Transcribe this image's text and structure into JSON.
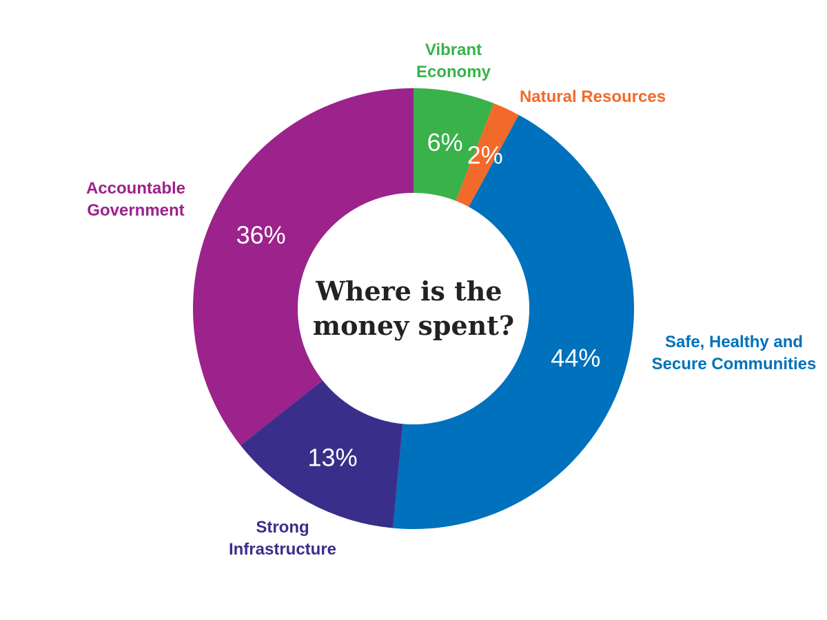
{
  "chart_data": {
    "type": "pie",
    "title": "Where is the money spent?",
    "title_lines": [
      "Where is the",
      "money spent?"
    ],
    "unit": "%",
    "slices": [
      {
        "label": "Vibrant Economy",
        "label_lines": [
          "Vibrant",
          "Economy"
        ],
        "value": 6,
        "value_label": "6%",
        "color": "#39B24A"
      },
      {
        "label": "Natural Resources",
        "label_lines": [
          "Natural Resources"
        ],
        "value": 2,
        "value_label": "2%",
        "color": "#F26A2A"
      },
      {
        "label": "Safe, Healthy and Secure Communities",
        "label_lines": [
          "Safe, Healthy and",
          "Secure Communities"
        ],
        "value": 44,
        "value_label": "44%",
        "color": "#0071BC"
      },
      {
        "label": "Strong Infrastructure",
        "label_lines": [
          "Strong",
          "Infrastructure"
        ],
        "value": 13,
        "value_label": "13%",
        "color": "#3A2E8B"
      },
      {
        "label": "Accountable Government",
        "label_lines": [
          "Accountable",
          "Government"
        ],
        "value": 36,
        "value_label": "36%",
        "color": "#9B238B"
      }
    ],
    "start_angle": "12 o'clock",
    "direction": "clockwise",
    "donut": true
  }
}
